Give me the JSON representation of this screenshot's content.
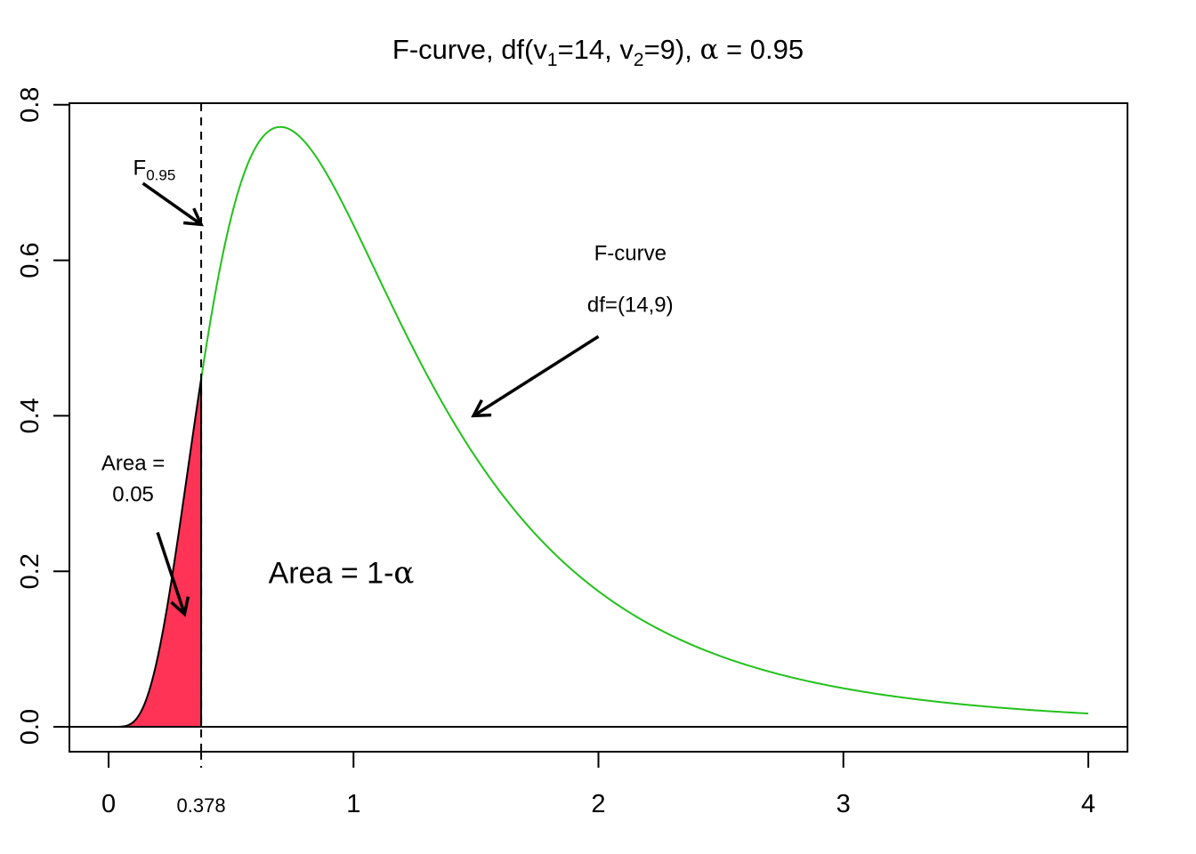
{
  "chart_data": {
    "type": "area",
    "title": {
      "prefix": "F-curve, df(v",
      "sub1": "1",
      "mid": "=14, v",
      "sub2": "2",
      "suffix": "=9), ",
      "alpha_symbol": "α",
      "alpha_value": " = 0.95"
    },
    "xlabel": "",
    "ylabel": "",
    "xlim": [
      -0.16,
      4.16
    ],
    "ylim": [
      -0.032,
      0.802
    ],
    "x_ticks": [
      0,
      1,
      2,
      3,
      4
    ],
    "x_tick_labels": [
      "0",
      "1",
      "2",
      "3",
      "4"
    ],
    "critical_tick": {
      "value": 0.378,
      "label": "0.378"
    },
    "y_ticks": [
      0.0,
      0.2,
      0.4,
      0.6,
      0.8
    ],
    "y_tick_labels": [
      "0.0",
      "0.2",
      "0.4",
      "0.6",
      "0.8"
    ],
    "distribution": {
      "df1": 14,
      "df2": 9
    },
    "curve_range": [
      0,
      4
    ],
    "shaded_region": [
      0,
      0.378
    ],
    "critical_value": 0.378,
    "grid": false,
    "colors": {
      "curve": "#22c11a",
      "shade": "#ff3355",
      "axis": "#000000"
    },
    "annotations": {
      "critical": {
        "main": "F",
        "sub": "0.95",
        "arrow_from": [
          0.14,
          0.699
        ],
        "arrow_to": [
          0.378,
          0.646
        ],
        "text_at": [
          0.1,
          0.71
        ]
      },
      "curve_label": {
        "line1": "F-curve",
        "line2": "df=(14,9)",
        "arrow_from": [
          2.0,
          0.502
        ],
        "arrow_to": [
          1.49,
          0.4
        ],
        "text_at": [
          2.13,
          0.6
        ]
      },
      "left_area": {
        "line1": "Area =",
        "line2": "0.05",
        "arrow_from": [
          0.2,
          0.25
        ],
        "arrow_to": [
          0.31,
          0.145
        ],
        "text_at": [
          0.1,
          0.33
        ]
      },
      "right_area": {
        "text": "Area = 1-",
        "symbol": "α",
        "text_at": [
          0.95,
          0.185
        ]
      }
    }
  }
}
